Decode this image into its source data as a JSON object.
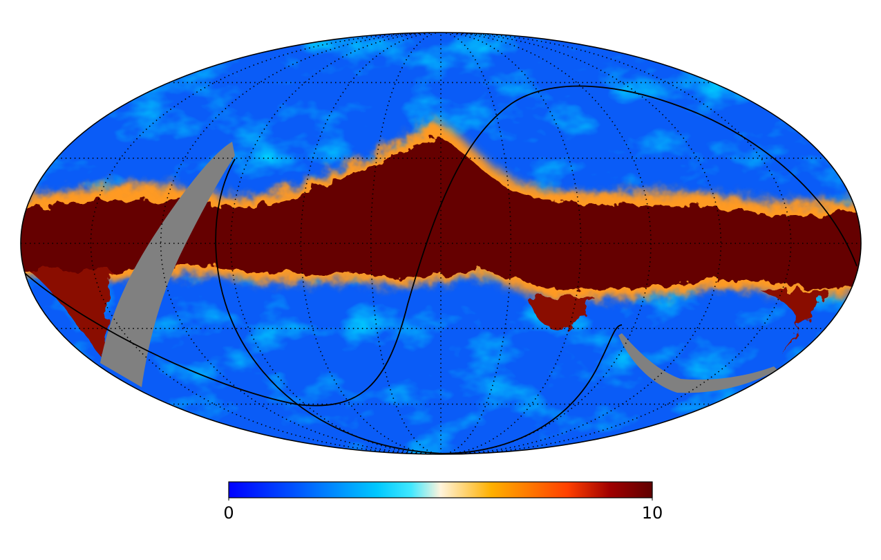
{
  "colorbar": {
    "min": 0,
    "max": 10,
    "ticks": [
      0,
      10
    ]
  }
}
